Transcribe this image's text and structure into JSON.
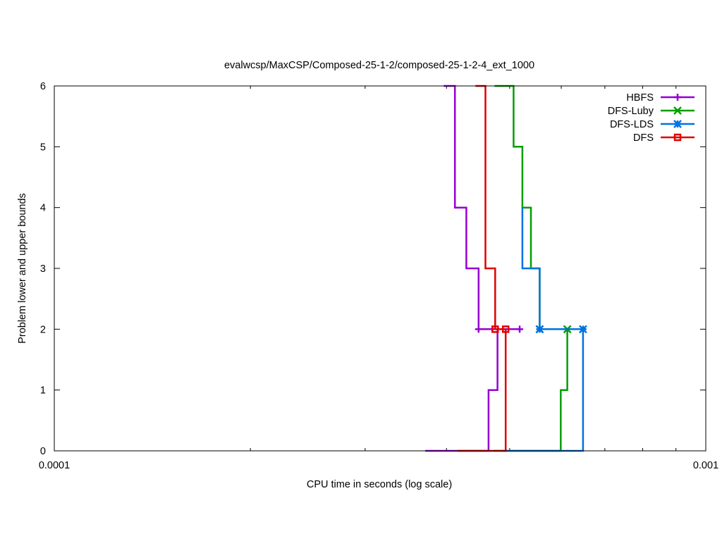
{
  "chart_data": {
    "type": "line",
    "title": "evalwcsp/MaxCSP/Composed-25-1-2/composed-25-1-2-4_ext_1000",
    "xlabel": "CPU time in seconds (log scale)",
    "ylabel": "Problem lower and upper bounds",
    "xscale": "log",
    "xlim": [
      0.0001,
      0.001
    ],
    "ylim": [
      0,
      6
    ],
    "xticks": [
      {
        "value": 0.0001,
        "label": "0.0001"
      },
      {
        "value": 0.001,
        "label": "0.001"
      }
    ],
    "yticks": [
      {
        "value": 0,
        "label": "0"
      },
      {
        "value": 1,
        "label": "1"
      },
      {
        "value": 2,
        "label": "2"
      },
      {
        "value": 3,
        "label": "3"
      },
      {
        "value": 4,
        "label": "4"
      },
      {
        "value": 5,
        "label": "5"
      },
      {
        "value": 6,
        "label": "6"
      }
    ],
    "grid": false,
    "legend_position": "top-right",
    "series": [
      {
        "name": "HBFS",
        "color": "#9400d3",
        "marker": "plus",
        "upper": [
          [
            0.000396,
            6
          ],
          [
            0.000412,
            6
          ],
          [
            0.000412,
            4
          ],
          [
            0.000429,
            4
          ],
          [
            0.000429,
            3
          ],
          [
            0.000448,
            3
          ],
          [
            0.000448,
            2
          ],
          [
            0.000518,
            2
          ]
        ],
        "lower": [
          [
            0.000371,
            0
          ],
          [
            0.000464,
            0
          ],
          [
            0.000464,
            1
          ],
          [
            0.000479,
            1
          ],
          [
            0.000479,
            2
          ],
          [
            0.000518,
            2
          ]
        ],
        "markers": [
          [
            0.000448,
            2
          ],
          [
            0.000518,
            2
          ]
        ]
      },
      {
        "name": "DFS-Luby",
        "color": "#009e00",
        "marker": "x",
        "upper": [
          [
            0.000474,
            6
          ],
          [
            0.000507,
            6
          ],
          [
            0.000507,
            5
          ],
          [
            0.000523,
            5
          ],
          [
            0.000523,
            4
          ],
          [
            0.000539,
            4
          ],
          [
            0.000539,
            3
          ],
          [
            0.000556,
            3
          ],
          [
            0.000556,
            2
          ],
          [
            0.000613,
            2
          ]
        ],
        "lower": [
          [
            0.000473,
            0
          ],
          [
            0.000599,
            0
          ],
          [
            0.000599,
            1
          ],
          [
            0.000613,
            1
          ],
          [
            0.000613,
            2
          ]
        ],
        "markers": [
          [
            0.000556,
            2
          ],
          [
            0.000613,
            2
          ]
        ]
      },
      {
        "name": "DFS-LDS",
        "color": "#0072e0",
        "marker": "star",
        "upper": [
          [
            0.000523,
            4
          ],
          [
            0.000523,
            3
          ],
          [
            0.000556,
            3
          ],
          [
            0.000556,
            2
          ],
          [
            0.000648,
            2
          ]
        ],
        "lower": [
          [
            0.000486,
            0
          ],
          [
            0.000648,
            0
          ],
          [
            0.000648,
            2
          ]
        ],
        "markers": [
          [
            0.000556,
            2
          ],
          [
            0.000648,
            2
          ]
        ]
      },
      {
        "name": "DFS",
        "color": "#e00000",
        "marker": "square",
        "upper": [
          [
            0.000443,
            6
          ],
          [
            0.000459,
            6
          ],
          [
            0.000459,
            3
          ],
          [
            0.000475,
            3
          ],
          [
            0.000475,
            2
          ],
          [
            0.000493,
            2
          ]
        ],
        "lower": [
          [
            0.000416,
            0
          ],
          [
            0.000493,
            0
          ],
          [
            0.000493,
            2
          ]
        ],
        "markers": [
          [
            0.000475,
            2
          ],
          [
            0.000493,
            2
          ]
        ]
      }
    ]
  }
}
